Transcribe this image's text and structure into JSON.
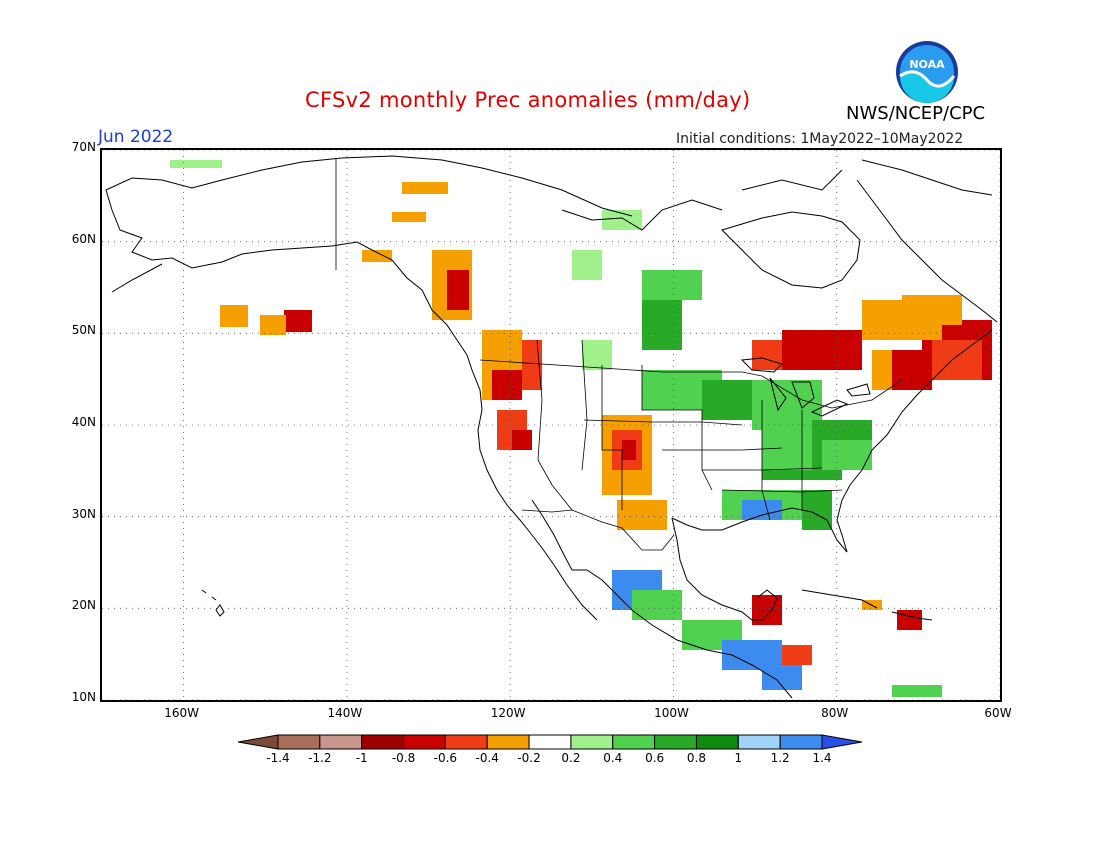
{
  "title": "CFSv2 monthly Prec anomalies (mm/day)",
  "month": "Jun 2022",
  "initial_conditions": "Initial conditions: 1May2022–10May2022",
  "agency": "NWS/NCEP/CPC",
  "logo": {
    "text": "NOAA",
    "icon": "noaa-logo-icon"
  },
  "map": {
    "lat_labels": [
      "70N",
      "60N",
      "50N",
      "40N",
      "30N",
      "20N",
      "10N"
    ],
    "lon_labels": [
      "160W",
      "140W",
      "120W",
      "100W",
      "80W",
      "60W"
    ],
    "lat_values": [
      70,
      60,
      50,
      40,
      30,
      20,
      10
    ],
    "lon_values": [
      -160,
      -140,
      -120,
      -100,
      -80,
      -60
    ],
    "lon_range": [
      -170,
      -60
    ],
    "lat_range": [
      10,
      70
    ],
    "grid": "dotted"
  },
  "colorbar": {
    "labels": [
      "-1.4",
      "-1.2",
      "-1",
      "-0.8",
      "-0.6",
      "-0.4",
      "-0.2",
      "0.2",
      "0.4",
      "0.6",
      "0.8",
      "1",
      "1.2",
      "1.4"
    ],
    "colors": [
      "#7a4a3a",
      "#a86e5c",
      "#c8968a",
      "#9e0000",
      "#c80000",
      "#f03c14",
      "#f5a000",
      "#ffffff",
      "#a0f08c",
      "#50d250",
      "#28aa28",
      "#0e8c0e",
      "#a0d2fa",
      "#3c8cf0",
      "#2850e6"
    ]
  },
  "colors": {
    "title": "#e00000",
    "month": "#1a3fd0",
    "dry_strong": "#c80000",
    "dry_moderate": "#f03c14",
    "dry_light": "#f5a000",
    "wet_light": "#a0f08c",
    "wet_moderate": "#50d250",
    "wet_strong": "#28aa28",
    "wet_very": "#3c8cf0"
  }
}
